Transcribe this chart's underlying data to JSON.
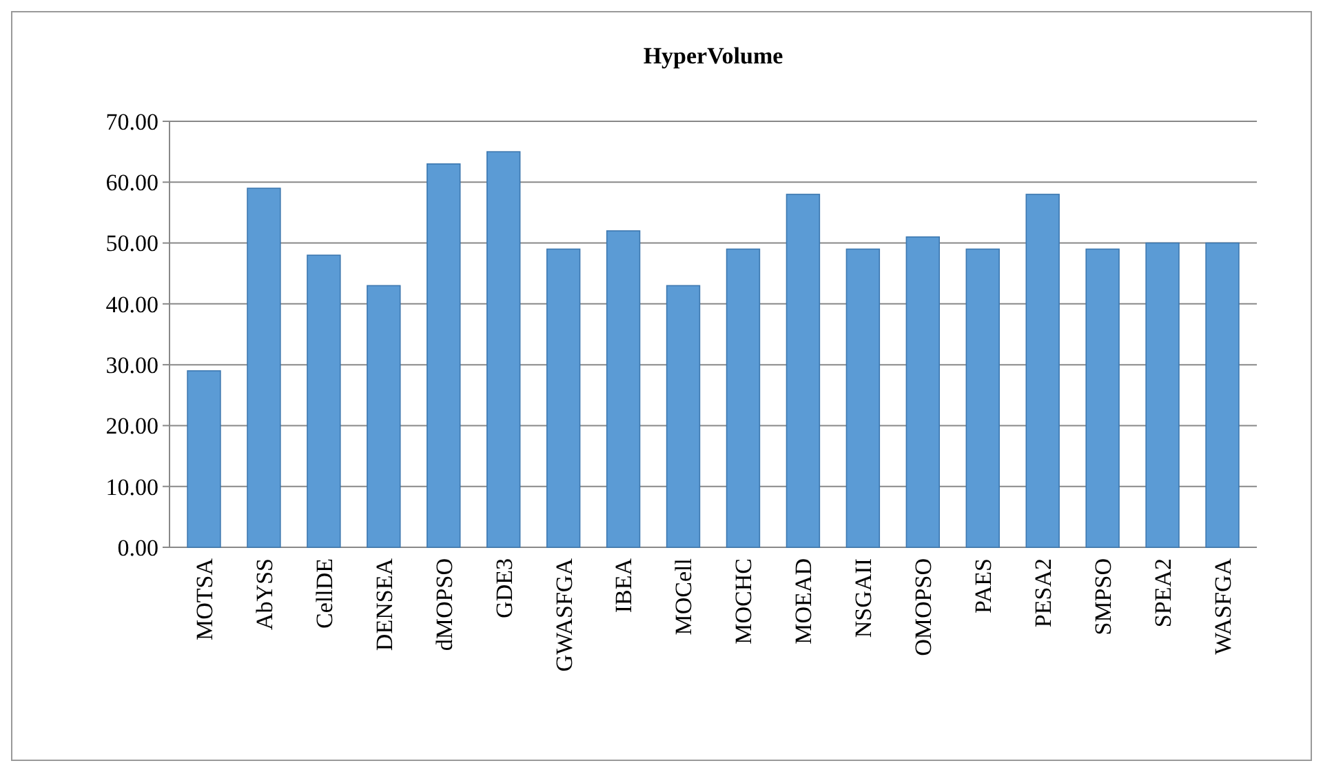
{
  "chart_data": {
    "type": "bar",
    "title": "HyperVolume",
    "categories": [
      "MOTSA",
      "AbYSS",
      "CellDE",
      "DENSEA",
      "dMOPSO",
      "GDE3",
      "GWASFGA",
      "IBEA",
      "MOCell",
      "MOCHC",
      "MOEAD",
      "NSGAII",
      "OMOPSO",
      "PAES",
      "PESA2",
      "SMPSO",
      "SPEA2",
      "WASFGA"
    ],
    "values": [
      29,
      59,
      48,
      43,
      63,
      65,
      49,
      52,
      43,
      49,
      58,
      49,
      51,
      49,
      58,
      49,
      50,
      50
    ],
    "color": "#5b9bd5",
    "ylim": [
      0,
      70
    ],
    "yticks": [
      {
        "value": 0,
        "label": "0.00"
      },
      {
        "value": 10,
        "label": "10.00"
      },
      {
        "value": 20,
        "label": "20.00"
      },
      {
        "value": 30,
        "label": "30.00"
      },
      {
        "value": 40,
        "label": "40.00"
      },
      {
        "value": 50,
        "label": "50.00"
      },
      {
        "value": 60,
        "label": "60.00"
      },
      {
        "value": 70,
        "label": "70.00"
      }
    ],
    "grid": "y"
  }
}
